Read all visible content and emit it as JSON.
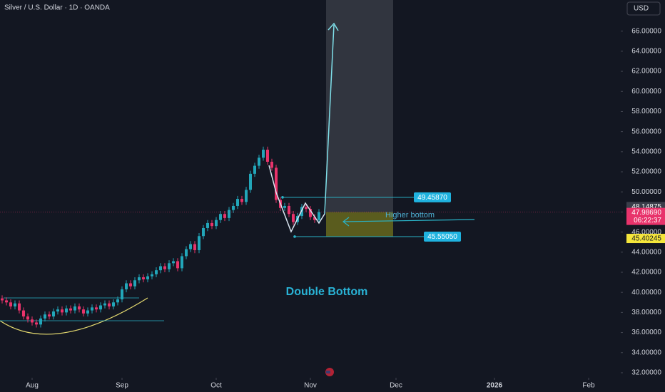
{
  "chart_data": {
    "type": "candlestick",
    "title": "Silver / U.S. Dollar · 1D · OANDA",
    "currency": "USD",
    "up_color": "#22a6b9",
    "down_color": "#e8336b",
    "x": [
      0,
      1,
      2,
      3,
      4,
      5,
      6,
      7,
      8,
      9,
      10,
      11,
      12,
      13,
      14,
      15,
      16,
      17,
      18,
      19,
      20,
      21,
      22,
      23,
      24,
      25,
      26,
      27,
      28,
      29,
      30,
      31,
      32,
      33,
      34,
      35,
      36,
      37,
      38,
      39,
      40,
      41,
      42,
      43,
      44,
      45,
      46,
      47,
      48,
      49,
      50,
      51,
      52,
      53,
      54,
      55,
      56,
      57,
      58,
      59,
      60,
      61,
      62,
      63,
      64,
      65,
      66,
      67,
      68,
      69,
      70,
      71,
      72,
      73,
      74
    ],
    "open": [
      39.4,
      39.2,
      39.0,
      38.6,
      38.9,
      38.2,
      37.6,
      37.3,
      37.0,
      36.8,
      37.4,
      37.8,
      37.6,
      38.1,
      38.3,
      38.0,
      38.4,
      38.2,
      38.6,
      38.3,
      37.9,
      38.2,
      38.5,
      38.3,
      38.7,
      38.9,
      38.6,
      39.0,
      39.3,
      40.3,
      40.9,
      40.6,
      41.2,
      41.5,
      41.3,
      41.6,
      41.8,
      42.2,
      42.6,
      42.3,
      42.9,
      43.1,
      42.4,
      43.6,
      44.3,
      44.8,
      44.2,
      45.6,
      46.4,
      46.9,
      46.6,
      47.2,
      47.8,
      47.4,
      48.2,
      48.6,
      49.3,
      49.0,
      50.2,
      51.8,
      52.6,
      53.4,
      54.2,
      53.0,
      52.4,
      49.2,
      48.4,
      48.6,
      47.8,
      47.0,
      47.6,
      48.5,
      48.3,
      47.5,
      47.2
    ],
    "high": [
      39.7,
      39.5,
      39.3,
      39.2,
      39.2,
      38.5,
      37.9,
      37.6,
      37.3,
      37.7,
      38.1,
      38.1,
      38.4,
      38.6,
      38.6,
      38.7,
      38.7,
      38.9,
      38.9,
      38.6,
      38.5,
      38.8,
      38.8,
      39.0,
      39.2,
      39.2,
      39.3,
      39.6,
      40.6,
      41.2,
      41.2,
      41.5,
      41.8,
      41.8,
      41.9,
      42.1,
      42.5,
      42.9,
      42.9,
      43.2,
      43.4,
      43.4,
      43.9,
      44.6,
      45.1,
      45.1,
      45.9,
      46.7,
      47.2,
      47.2,
      47.5,
      48.1,
      48.1,
      48.5,
      48.9,
      49.6,
      49.6,
      50.5,
      52.1,
      52.9,
      53.7,
      54.5,
      54.5,
      53.3,
      52.7,
      49.5,
      48.9,
      48.9,
      48.1,
      47.9,
      48.8,
      48.8,
      48.6,
      47.8,
      48.29
    ],
    "low": [
      38.9,
      38.7,
      38.3,
      38.3,
      37.9,
      37.3,
      37.0,
      36.7,
      36.5,
      36.5,
      37.1,
      37.3,
      37.3,
      37.8,
      37.7,
      37.7,
      37.9,
      37.9,
      38.0,
      37.6,
      37.6,
      37.9,
      38.0,
      38.0,
      38.4,
      38.3,
      38.3,
      38.7,
      39.0,
      40.0,
      40.3,
      40.3,
      40.9,
      41.0,
      41.0,
      41.3,
      41.5,
      41.9,
      42.0,
      42.0,
      42.6,
      42.1,
      42.1,
      43.3,
      44.0,
      43.9,
      43.9,
      45.3,
      46.1,
      46.3,
      46.3,
      46.9,
      47.1,
      47.1,
      47.9,
      48.3,
      48.7,
      48.7,
      49.9,
      51.5,
      52.3,
      53.1,
      52.7,
      52.1,
      48.9,
      48.1,
      48.1,
      47.5,
      46.7,
      46.7,
      47.3,
      48.0,
      47.2,
      46.9,
      46.9
    ],
    "close": [
      39.2,
      39.0,
      38.6,
      38.9,
      38.2,
      37.6,
      37.3,
      37.0,
      36.8,
      37.4,
      37.8,
      37.6,
      38.1,
      38.3,
      38.0,
      38.4,
      38.2,
      38.6,
      38.3,
      37.9,
      38.2,
      38.5,
      38.3,
      38.7,
      38.9,
      38.6,
      39.0,
      39.3,
      40.3,
      40.9,
      40.6,
      41.2,
      41.5,
      41.3,
      41.6,
      41.8,
      42.2,
      42.6,
      42.3,
      42.9,
      43.1,
      42.4,
      43.6,
      44.3,
      44.8,
      44.2,
      45.6,
      46.4,
      46.9,
      46.6,
      47.2,
      47.8,
      47.4,
      48.2,
      48.6,
      49.3,
      49.0,
      50.2,
      51.8,
      52.6,
      53.4,
      54.2,
      53.0,
      52.4,
      49.2,
      48.4,
      48.6,
      47.8,
      47.0,
      47.6,
      48.5,
      48.3,
      47.5,
      47.2,
      47.99
    ],
    "xlim": [
      -0.5,
      144.5
    ],
    "xticks": [
      {
        "value": 7,
        "label": "Aug"
      },
      {
        "value": 28,
        "label": "Sep"
      },
      {
        "value": 50,
        "label": "Oct"
      },
      {
        "value": 72,
        "label": "Nov"
      },
      {
        "value": 92,
        "label": "Dec"
      },
      {
        "value": 115,
        "label": "2026"
      },
      {
        "value": 137,
        "label": "Feb"
      }
    ],
    "ylim": [
      31.5,
      69.1
    ],
    "yticks": [
      {
        "value": 32,
        "label": "32.00000"
      },
      {
        "value": 34,
        "label": "34.00000"
      },
      {
        "value": 36,
        "label": "36.00000"
      },
      {
        "value": 38,
        "label": "38.00000"
      },
      {
        "value": 40,
        "label": "40.00000"
      },
      {
        "value": 42,
        "label": "42.00000"
      },
      {
        "value": 44,
        "label": "44.00000"
      },
      {
        "value": 46,
        "label": "46.00000"
      },
      {
        "value": 48,
        "label": "48.00000"
      },
      {
        "value": 50,
        "label": "50.00000"
      },
      {
        "value": 52,
        "label": "52.00000"
      },
      {
        "value": 54,
        "label": "54.00000"
      },
      {
        "value": 56,
        "label": "56.00000"
      },
      {
        "value": 58,
        "label": "58.00000"
      },
      {
        "value": 60,
        "label": "60.00000"
      },
      {
        "value": 62,
        "label": "62.00000"
      },
      {
        "value": 64,
        "label": "64.00000"
      },
      {
        "value": 66,
        "label": "66.00000"
      }
    ],
    "levels": [
      {
        "value": 49.4587,
        "label": "49.45870"
      },
      {
        "value": 45.5505,
        "label": "45.55050"
      }
    ],
    "price_tags": [
      {
        "value": 48.14875,
        "label": "48.14875",
        "color": "#3a3e4a"
      },
      {
        "value": 47.9869,
        "label": "47.98690",
        "color": "#e8336b"
      },
      {
        "value": 45.40245,
        "label": "45.40245",
        "color": "#f5e63b"
      }
    ],
    "countdown": "06:22:37",
    "pattern": "Double Bottom",
    "note": "Higher bottom"
  }
}
